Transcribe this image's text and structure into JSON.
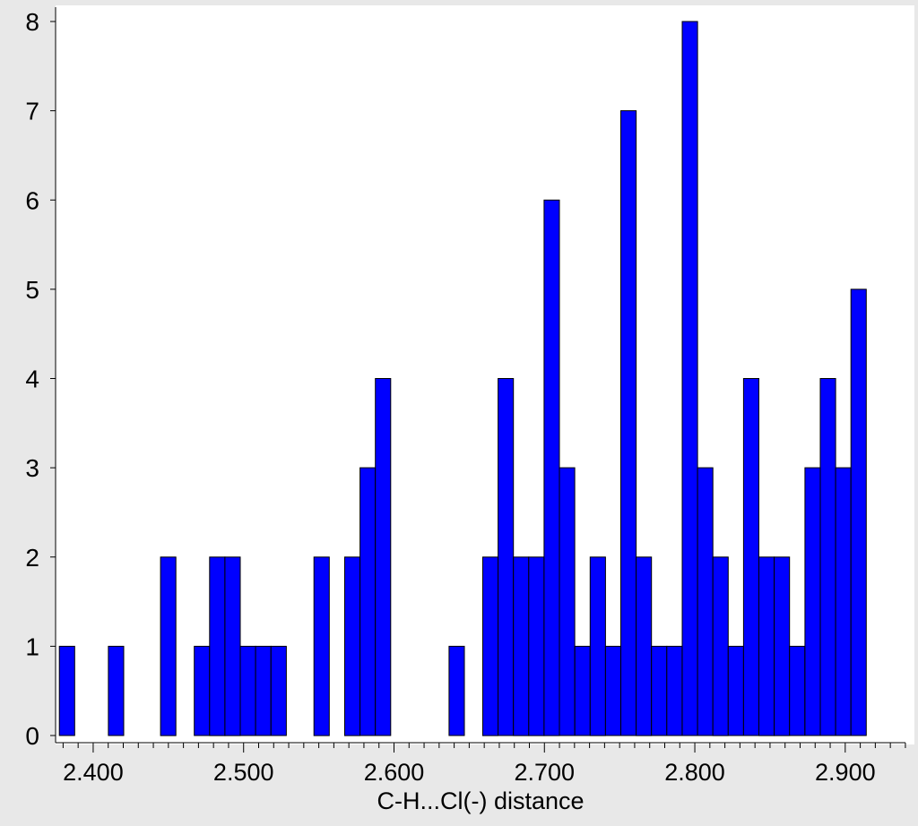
{
  "chart_data": {
    "type": "bar",
    "xlabel": "C-H...Cl(-) distance",
    "ylabel": "",
    "x_ticks": [
      "2.400",
      "2.500",
      "2.600",
      "2.700",
      "2.800",
      "2.900"
    ],
    "x_tick_values": [
      2.4,
      2.5,
      2.6,
      2.7,
      2.8,
      2.9
    ],
    "y_ticks": [
      "0",
      "1",
      "2",
      "3",
      "4",
      "5",
      "6",
      "7",
      "8"
    ],
    "xlim": [
      2.375,
      2.946
    ],
    "ylim": [
      0,
      8
    ],
    "bin_width": 0.0102,
    "grid": false,
    "colors": {
      "bar_fill": "#0000ff",
      "bar_stroke": "#000000",
      "plot_bg": "#ffffff",
      "page_bg": "#e8e8e8"
    },
    "bins": [
      {
        "x": 2.3775,
        "count": 1
      },
      {
        "x": 2.4101,
        "count": 1
      },
      {
        "x": 2.4448,
        "count": 2
      },
      {
        "x": 2.4672,
        "count": 1
      },
      {
        "x": 2.4774,
        "count": 2
      },
      {
        "x": 2.4876,
        "count": 2
      },
      {
        "x": 2.4978,
        "count": 1
      },
      {
        "x": 2.508,
        "count": 1
      },
      {
        "x": 2.5182,
        "count": 1
      },
      {
        "x": 2.5468,
        "count": 2
      },
      {
        "x": 2.5672,
        "count": 2
      },
      {
        "x": 2.5774,
        "count": 3
      },
      {
        "x": 2.5876,
        "count": 4
      },
      {
        "x": 2.6366,
        "count": 1
      },
      {
        "x": 2.659,
        "count": 2
      },
      {
        "x": 2.6692,
        "count": 4
      },
      {
        "x": 2.6794,
        "count": 2
      },
      {
        "x": 2.6896,
        "count": 2
      },
      {
        "x": 2.6998,
        "count": 6
      },
      {
        "x": 2.71,
        "count": 3
      },
      {
        "x": 2.7202,
        "count": 1
      },
      {
        "x": 2.7304,
        "count": 2
      },
      {
        "x": 2.7406,
        "count": 1
      },
      {
        "x": 2.7508,
        "count": 7
      },
      {
        "x": 2.761,
        "count": 2
      },
      {
        "x": 2.7712,
        "count": 1
      },
      {
        "x": 2.7814,
        "count": 1
      },
      {
        "x": 2.7916,
        "count": 8
      },
      {
        "x": 2.8018,
        "count": 3
      },
      {
        "x": 2.812,
        "count": 2
      },
      {
        "x": 2.8222,
        "count": 1
      },
      {
        "x": 2.8324,
        "count": 4
      },
      {
        "x": 2.8426,
        "count": 2
      },
      {
        "x": 2.8528,
        "count": 2
      },
      {
        "x": 2.863,
        "count": 1
      },
      {
        "x": 2.8732,
        "count": 3
      },
      {
        "x": 2.8834,
        "count": 4
      },
      {
        "x": 2.8936,
        "count": 3
      },
      {
        "x": 2.9038,
        "count": 5
      }
    ]
  }
}
